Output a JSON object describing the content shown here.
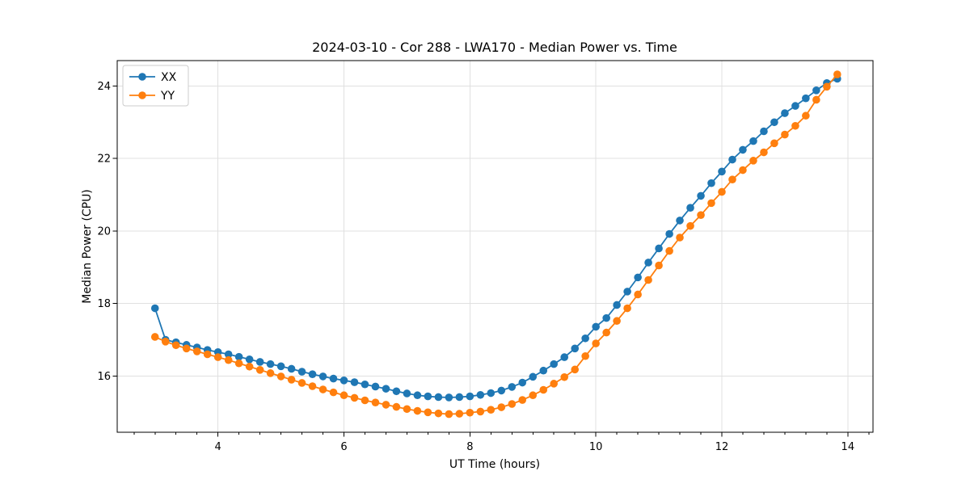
{
  "figure": {
    "background": "#ffffff",
    "spine_color": "#000000",
    "grid_color": "#e0e0e0",
    "text_color": "#000000"
  },
  "chart_data": {
    "type": "line",
    "title": "2024-03-10 - Cor 288 - LWA170 - Median Power vs. Time",
    "xlabel": "UT Time (hours)",
    "ylabel": "Median Power (CPU)",
    "xlim": [
      2.4,
      14.4
    ],
    "ylim": [
      14.45,
      24.7
    ],
    "xticks": [
      4,
      6,
      8,
      10,
      12,
      14
    ],
    "yticks": [
      16,
      18,
      20,
      22,
      24
    ],
    "x_minor_interval": 0.3333,
    "grid": true,
    "legend_position": "upper-left",
    "x": [
      3.0,
      3.167,
      3.333,
      3.5,
      3.667,
      3.833,
      4.0,
      4.167,
      4.333,
      4.5,
      4.667,
      4.833,
      5.0,
      5.167,
      5.333,
      5.5,
      5.667,
      5.833,
      6.0,
      6.167,
      6.333,
      6.5,
      6.667,
      6.833,
      7.0,
      7.167,
      7.333,
      7.5,
      7.667,
      7.833,
      8.0,
      8.167,
      8.333,
      8.5,
      8.667,
      8.833,
      9.0,
      9.167,
      9.333,
      9.5,
      9.667,
      9.833,
      10.0,
      10.167,
      10.333,
      10.5,
      10.667,
      10.833,
      11.0,
      11.167,
      11.333,
      11.5,
      11.667,
      11.833,
      12.0,
      12.167,
      12.333,
      12.5,
      12.667,
      12.833,
      13.0,
      13.167,
      13.333,
      13.5,
      13.667,
      13.833
    ],
    "series": [
      {
        "name": "XX",
        "color": "#1f77b4",
        "marker": "circle",
        "values": [
          17.87,
          17.0,
          16.93,
          16.86,
          16.79,
          16.72,
          16.66,
          16.6,
          16.53,
          16.46,
          16.39,
          16.33,
          16.27,
          16.2,
          16.12,
          16.05,
          15.99,
          15.93,
          15.88,
          15.83,
          15.77,
          15.71,
          15.65,
          15.58,
          15.52,
          15.47,
          15.44,
          15.42,
          15.41,
          15.42,
          15.44,
          15.48,
          15.53,
          15.6,
          15.7,
          15.82,
          15.98,
          16.15,
          16.33,
          16.52,
          16.76,
          17.04,
          17.36,
          17.6,
          17.96,
          18.33,
          18.72,
          19.13,
          19.52,
          19.92,
          20.29,
          20.64,
          20.97,
          21.32,
          21.64,
          21.97,
          22.24,
          22.48,
          22.75,
          23.0,
          23.25,
          23.45,
          23.66,
          23.88,
          24.08,
          24.2
        ]
      },
      {
        "name": "YY",
        "color": "#ff7f0e",
        "marker": "circle",
        "values": [
          17.08,
          16.95,
          16.85,
          16.76,
          16.68,
          16.6,
          16.52,
          16.44,
          16.35,
          16.26,
          16.17,
          16.08,
          15.99,
          15.9,
          15.81,
          15.72,
          15.63,
          15.55,
          15.47,
          15.4,
          15.33,
          15.27,
          15.21,
          15.15,
          15.09,
          15.04,
          15.0,
          14.97,
          14.95,
          14.96,
          14.99,
          15.02,
          15.07,
          15.14,
          15.23,
          15.34,
          15.47,
          15.62,
          15.79,
          15.97,
          16.18,
          16.55,
          16.9,
          17.2,
          17.52,
          17.87,
          18.25,
          18.65,
          19.05,
          19.45,
          19.82,
          20.14,
          20.44,
          20.77,
          21.08,
          21.42,
          21.68,
          21.94,
          22.17,
          22.42,
          22.66,
          22.9,
          23.18,
          23.62,
          23.98,
          24.32
        ]
      }
    ]
  }
}
